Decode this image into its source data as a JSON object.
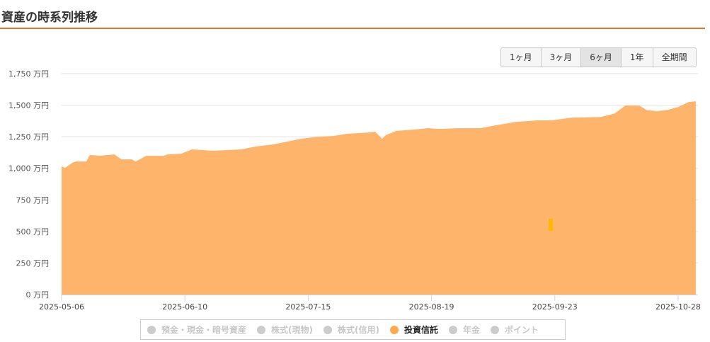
{
  "header": {
    "title": "資産の時系列推移"
  },
  "range_buttons": [
    {
      "label": "1ヶ月",
      "active": false
    },
    {
      "label": "3ヶ月",
      "active": false
    },
    {
      "label": "6ヶ月",
      "active": true
    },
    {
      "label": "1年",
      "active": false
    },
    {
      "label": "全期間",
      "active": false
    }
  ],
  "colors": {
    "accent": "#e8732a",
    "series_fill": "#ffb46b",
    "legend_active": "#ffa94d",
    "legend_inactive": "#cccccc",
    "marker": "#ffb800"
  },
  "chart_data": {
    "type": "area",
    "ylim": [
      0,
      1750
    ],
    "yticks": [
      0,
      250,
      500,
      750,
      1000,
      1250,
      1500,
      1750
    ],
    "ytick_labels": [
      "0 万円",
      "250 万円",
      "500 万円",
      "750 万円",
      "1,000 万円",
      "1,250 万円",
      "1,500 万円",
      "1,750 万円"
    ],
    "xlim": [
      "2025-05-06",
      "2025-11-02"
    ],
    "xticks": [
      "2025-05-06",
      "2025-06-10",
      "2025-07-15",
      "2025-08-19",
      "2025-09-23",
      "2025-10-28"
    ],
    "grid": true,
    "legend_position": "bottom",
    "legend": [
      {
        "name": "預金・現金・暗号資産",
        "active": false
      },
      {
        "name": "株式(現物)",
        "active": false
      },
      {
        "name": "株式(信用)",
        "active": false
      },
      {
        "name": "投資信託",
        "active": true
      },
      {
        "name": "年金",
        "active": false
      },
      {
        "name": "ポイント",
        "active": false
      }
    ],
    "series": [
      {
        "name": "投資信託",
        "points": [
          [
            "2025-05-06",
            1015
          ],
          [
            "2025-05-07",
            1004
          ],
          [
            "2025-05-09",
            1043
          ],
          [
            "2025-05-10",
            1054
          ],
          [
            "2025-05-13",
            1054
          ],
          [
            "2025-05-14",
            1105
          ],
          [
            "2025-05-17",
            1100
          ],
          [
            "2025-05-21",
            1110
          ],
          [
            "2025-05-23",
            1071
          ],
          [
            "2025-05-26",
            1071
          ],
          [
            "2025-05-27",
            1054
          ],
          [
            "2025-05-30",
            1099
          ],
          [
            "2025-06-04",
            1099
          ],
          [
            "2025-06-05",
            1110
          ],
          [
            "2025-06-09",
            1116
          ],
          [
            "2025-06-12",
            1150
          ],
          [
            "2025-06-18",
            1139
          ],
          [
            "2025-06-22",
            1144
          ],
          [
            "2025-06-26",
            1150
          ],
          [
            "2025-06-30",
            1172
          ],
          [
            "2025-07-05",
            1189
          ],
          [
            "2025-07-08",
            1206
          ],
          [
            "2025-07-13",
            1234
          ],
          [
            "2025-07-18",
            1251
          ],
          [
            "2025-07-22",
            1256
          ],
          [
            "2025-07-26",
            1273
          ],
          [
            "2025-08-01",
            1284
          ],
          [
            "2025-08-03",
            1290
          ],
          [
            "2025-08-05",
            1234
          ],
          [
            "2025-08-06",
            1262
          ],
          [
            "2025-08-09",
            1296
          ],
          [
            "2025-08-14",
            1307
          ],
          [
            "2025-08-18",
            1318
          ],
          [
            "2025-08-21",
            1312
          ],
          [
            "2025-08-27",
            1318
          ],
          [
            "2025-09-02",
            1318
          ],
          [
            "2025-09-06",
            1340
          ],
          [
            "2025-09-12",
            1368
          ],
          [
            "2025-09-18",
            1380
          ],
          [
            "2025-09-22",
            1380
          ],
          [
            "2025-09-28",
            1402
          ],
          [
            "2025-10-06",
            1407
          ],
          [
            "2025-10-10",
            1435
          ],
          [
            "2025-10-13",
            1497
          ],
          [
            "2025-10-17",
            1497
          ],
          [
            "2025-10-19",
            1463
          ],
          [
            "2025-10-22",
            1452
          ],
          [
            "2025-10-25",
            1463
          ],
          [
            "2025-10-28",
            1486
          ],
          [
            "2025-10-31",
            1525
          ],
          [
            "2025-11-02",
            1531
          ]
        ]
      }
    ]
  }
}
